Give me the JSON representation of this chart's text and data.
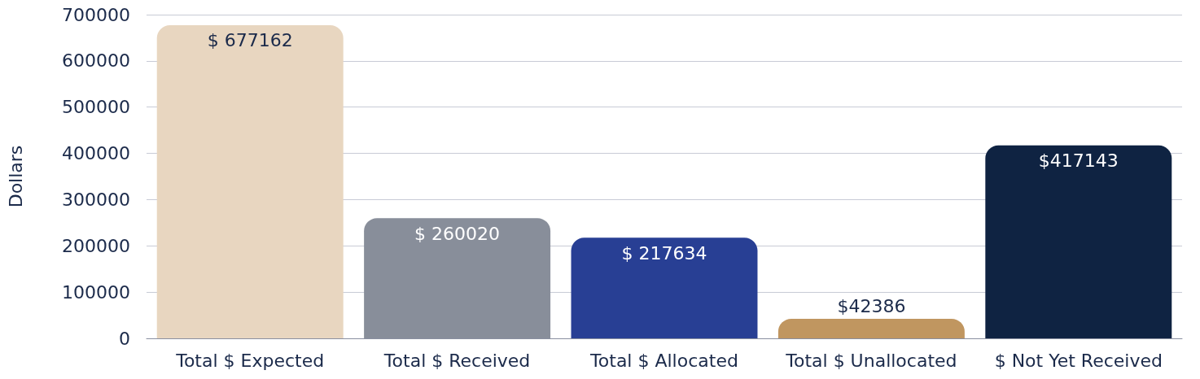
{
  "chart_data": {
    "type": "bar",
    "ylabel": "Dollars",
    "categories": [
      "Total $ Expected",
      "Total $ Received",
      "Total $ Allocated",
      "Total $ Unallocated",
      "$ Not Yet Received"
    ],
    "values": [
      677162,
      260020,
      217634,
      42386,
      417143
    ],
    "colors": [
      "#e8d6c0",
      "#888e9a",
      "#283f94",
      "#c09660",
      "#0f2342"
    ],
    "value_labels": [
      "$ 677162",
      "$ 260020",
      "$ 217634",
      "$42386",
      "$417143"
    ],
    "ylim": [
      0,
      700000
    ],
    "yticks": [
      0,
      100000,
      200000,
      300000,
      400000,
      500000,
      600000,
      700000
    ],
    "grid": "y"
  }
}
